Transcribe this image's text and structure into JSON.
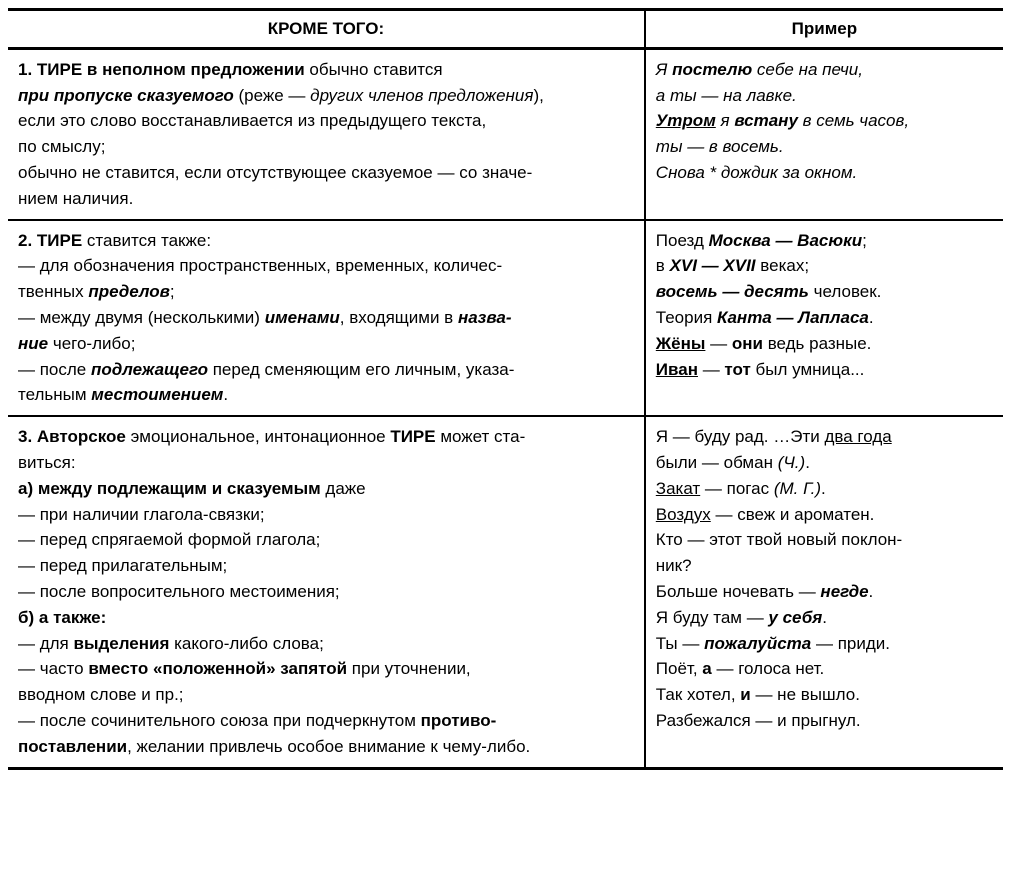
{
  "header": {
    "left": "КРОМЕ ТОГО:",
    "right": "Пример"
  },
  "rows": [
    {
      "left": [
        {
          "runs": [
            {
              "t": "1. ТИРЕ в неполном предложении",
              "c": "b"
            },
            {
              "t": " обычно ставится"
            }
          ]
        },
        {
          "runs": [
            {
              "t": "при пропуске сказуемого",
              "c": "bi"
            },
            {
              "t": " (реже — "
            },
            {
              "t": "других членов предложения",
              "c": "i"
            },
            {
              "t": "),"
            }
          ]
        },
        {
          "runs": [
            {
              "t": "если это слово восстанавливается из предыдущего текста,"
            }
          ]
        },
        {
          "runs": [
            {
              "t": "по смыслу;"
            }
          ]
        },
        {
          "runs": [
            {
              "t": "обычно не ставится, если отсутствующее сказуемое — со значе-"
            }
          ]
        },
        {
          "runs": [
            {
              "t": "нием наличия."
            }
          ]
        }
      ],
      "right": [
        {
          "runs": [
            {
              "t": "Я ",
              "c": "i"
            },
            {
              "t": "постелю",
              "c": "bi"
            },
            {
              "t": " себе на печи,",
              "c": "i"
            }
          ]
        },
        {
          "runs": [
            {
              "t": "а ты — на лавке.",
              "c": "i"
            }
          ]
        },
        {
          "runs": [
            {
              "t": "Утром",
              "c": "bi u"
            },
            {
              "t": " я ",
              "c": "i"
            },
            {
              "t": "встану",
              "c": "bi"
            },
            {
              "t": " в семь часов,",
              "c": "i"
            }
          ]
        },
        {
          "runs": [
            {
              "t": "ты — в восемь.",
              "c": "i"
            }
          ]
        },
        {
          "runs": [
            {
              "t": "Снова * дождик за окном.",
              "c": "i"
            }
          ]
        }
      ]
    },
    {
      "left": [
        {
          "runs": [
            {
              "t": "2. ТИРЕ",
              "c": "b"
            },
            {
              "t": " ставится также:"
            }
          ]
        },
        {
          "cls": "indent",
          "runs": [
            {
              "t": "— для обозначения пространственных, временных, количес-"
            }
          ]
        },
        {
          "runs": [
            {
              "t": "твенных "
            },
            {
              "t": "пределов",
              "c": "bi"
            },
            {
              "t": ";"
            }
          ]
        },
        {
          "runs": [
            {
              "t": " "
            }
          ]
        },
        {
          "cls": "indent",
          "runs": [
            {
              "t": "— между двумя (несколькими) "
            },
            {
              "t": "именами",
              "c": "bi"
            },
            {
              "t": ", входящими в "
            },
            {
              "t": "назва-",
              "c": "bi"
            }
          ]
        },
        {
          "runs": [
            {
              "t": "ние",
              "c": "bi"
            },
            {
              "t": " чего-либо;"
            }
          ]
        },
        {
          "cls": "indent",
          "runs": [
            {
              "t": "— после "
            },
            {
              "t": "подлежащего",
              "c": "bi"
            },
            {
              "t": " перед сменяющим его личным, указа-"
            }
          ]
        },
        {
          "runs": [
            {
              "t": "тельным "
            },
            {
              "t": "местоимением",
              "c": "bi"
            },
            {
              "t": "."
            }
          ]
        }
      ],
      "right": [
        {
          "runs": [
            {
              "t": " "
            }
          ]
        },
        {
          "runs": [
            {
              "t": "Поезд "
            },
            {
              "t": "Москва — Васюки",
              "c": "bi"
            },
            {
              "t": ";"
            }
          ]
        },
        {
          "runs": [
            {
              "t": "в "
            },
            {
              "t": "XVI — XVII",
              "c": "bi"
            },
            {
              "t": " веках;"
            }
          ]
        },
        {
          "runs": [
            {
              "t": "восемь — десять",
              "c": "bi"
            },
            {
              "t": " человек."
            }
          ]
        },
        {
          "runs": [
            {
              "t": "Теория "
            },
            {
              "t": "Канта — Лапласа",
              "c": "bi"
            },
            {
              "t": "."
            }
          ]
        },
        {
          "runs": [
            {
              "t": " "
            }
          ]
        },
        {
          "runs": [
            {
              "t": "Жёны",
              "c": "b u"
            },
            {
              "t": " — "
            },
            {
              "t": "они",
              "c": "b"
            },
            {
              "t": " ведь разные."
            }
          ]
        },
        {
          "runs": [
            {
              "t": "Иван",
              "c": "b u"
            },
            {
              "t": " — "
            },
            {
              "t": "тот",
              "c": "b"
            },
            {
              "t": " был умница..."
            }
          ]
        }
      ]
    },
    {
      "left": [
        {
          "runs": [
            {
              "t": "3. Авторское",
              "c": "b"
            },
            {
              "t": " эмоциональное, интонационное "
            },
            {
              "t": "ТИРЕ",
              "c": "b"
            },
            {
              "t": " может ста-"
            }
          ]
        },
        {
          "runs": [
            {
              "t": "виться:"
            }
          ]
        },
        {
          "runs": [
            {
              "t": "а) между подлежащим и сказуемым",
              "c": "b"
            },
            {
              "t": " даже"
            }
          ]
        },
        {
          "cls": "indent",
          "runs": [
            {
              "t": "— при наличии глагола-связки;"
            }
          ]
        },
        {
          "cls": "indent",
          "runs": [
            {
              "t": "— перед спрягаемой формой глагола;"
            }
          ]
        },
        {
          "cls": "indent",
          "runs": [
            {
              "t": "— перед прилагательным;"
            }
          ]
        },
        {
          "cls": "indent",
          "runs": [
            {
              "t": "— после вопросительного местоимения;"
            }
          ]
        },
        {
          "runs": [
            {
              "t": " "
            }
          ]
        },
        {
          "runs": [
            {
              "t": "б) а также:",
              "c": "b"
            }
          ]
        },
        {
          "cls": "indent",
          "runs": [
            {
              "t": "— для "
            },
            {
              "t": "выделения",
              "c": "b"
            },
            {
              "t": " какого-либо слова;"
            }
          ]
        },
        {
          "cls": "indent",
          "runs": [
            {
              "t": "— часто "
            },
            {
              "t": "вместо «положенной» запятой",
              "c": "b"
            },
            {
              "t": " при уточнении,"
            }
          ]
        },
        {
          "runs": [
            {
              "t": "вводном слове и пр.;"
            }
          ]
        },
        {
          "cls": "indent",
          "runs": [
            {
              "t": "— после сочинительного союза при подчеркнутом "
            },
            {
              "t": "противо-",
              "c": "b"
            }
          ]
        },
        {
          "runs": [
            {
              "t": "поставлении",
              "c": "b"
            },
            {
              "t": ", желании привлечь особое внимание к чему-либо."
            }
          ]
        }
      ],
      "right": [
        {
          "runs": [
            {
              "t": " "
            }
          ]
        },
        {
          "runs": [
            {
              "t": " "
            }
          ]
        },
        {
          "runs": [
            {
              "t": "Я — буду рад. …Эти "
            },
            {
              "t": "два года",
              "c": "u"
            }
          ]
        },
        {
          "runs": [
            {
              "t": "были — обман "
            },
            {
              "t": "(Ч.)",
              "c": "i"
            },
            {
              "t": "."
            }
          ]
        },
        {
          "runs": [
            {
              "t": "Закат",
              "c": "u"
            },
            {
              "t": " — погас "
            },
            {
              "t": "(М. Г.)",
              "c": "i"
            },
            {
              "t": "."
            }
          ]
        },
        {
          "runs": [
            {
              "t": "Воздух",
              "c": "u"
            },
            {
              "t": " — свеж и ароматен."
            }
          ]
        },
        {
          "runs": [
            {
              "t": "Кто — этот твой новый поклон-"
            }
          ]
        },
        {
          "runs": [
            {
              "t": "ник?"
            }
          ]
        },
        {
          "runs": [
            {
              "t": " "
            }
          ]
        },
        {
          "runs": [
            {
              "t": "Больше ночевать — "
            },
            {
              "t": "негде",
              "c": "bi"
            },
            {
              "t": "."
            }
          ]
        },
        {
          "runs": [
            {
              "t": "Я буду там — "
            },
            {
              "t": "у себя",
              "c": "bi"
            },
            {
              "t": "."
            }
          ]
        },
        {
          "runs": [
            {
              "t": "Ты — "
            },
            {
              "t": "пожалуйста",
              "c": "bi"
            },
            {
              "t": " — приди."
            }
          ]
        },
        {
          "runs": [
            {
              "t": "Поёт, "
            },
            {
              "t": "а",
              "c": "b"
            },
            {
              "t": " — голоса нет."
            }
          ]
        },
        {
          "runs": [
            {
              "t": "Так хотел, "
            },
            {
              "t": "и",
              "c": "b"
            },
            {
              "t": " — не вышло."
            }
          ]
        },
        {
          "runs": [
            {
              "t": "Разбежался — и прыгнул."
            }
          ]
        }
      ]
    }
  ]
}
